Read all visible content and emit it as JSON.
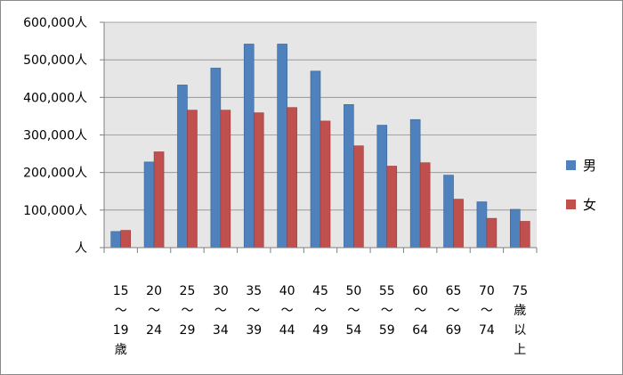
{
  "chart_data": {
    "type": "bar",
    "categories": [
      [
        "15",
        "～",
        "19",
        "歳"
      ],
      [
        "20",
        "～",
        "24"
      ],
      [
        "25",
        "～",
        "29"
      ],
      [
        "30",
        "～",
        "34"
      ],
      [
        "35",
        "～",
        "39"
      ],
      [
        "40",
        "～",
        "44"
      ],
      [
        "45",
        "～",
        "49"
      ],
      [
        "50",
        "～",
        "54"
      ],
      [
        "55",
        "～",
        "59"
      ],
      [
        "60",
        "～",
        "64"
      ],
      [
        "65",
        "～",
        "69"
      ],
      [
        "70",
        "～",
        "74"
      ],
      [
        "75",
        "歳",
        "以",
        "上"
      ]
    ],
    "series": [
      {
        "name": "男",
        "color": "#4f81bd",
        "values": [
          43000,
          228000,
          433000,
          478000,
          542000,
          542000,
          470000,
          381000,
          326000,
          341000,
          193000,
          122000,
          102000
        ]
      },
      {
        "name": "女",
        "color": "#c0504d",
        "values": [
          46000,
          255000,
          366000,
          366000,
          359000,
          373000,
          337000,
          271000,
          217000,
          226000,
          129000,
          78000,
          70000
        ]
      }
    ],
    "yticks": [
      "人",
      "100,000人",
      "200,000人",
      "300,000人",
      "400,000人",
      "500,000人",
      "600,000人"
    ],
    "ylim": [
      0,
      600000
    ],
    "grid": true,
    "legend": "right",
    "plot_bg": "#e6e6e6"
  }
}
